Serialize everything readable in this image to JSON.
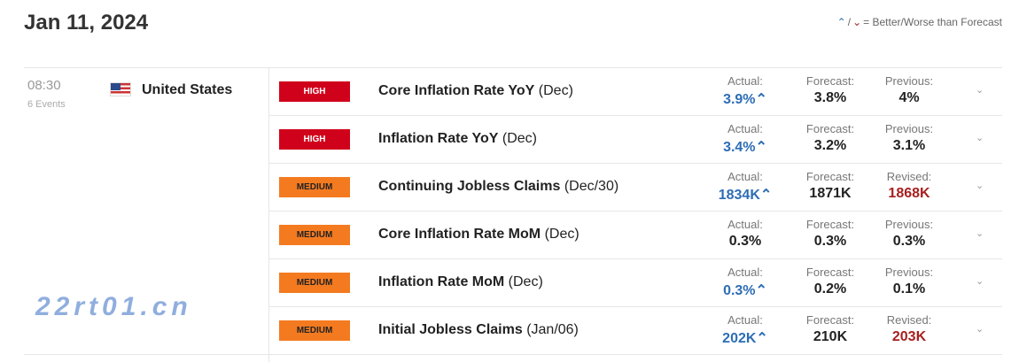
{
  "date": "Jan 11, 2024",
  "legend": {
    "text": "= Better/Worse than Forecast",
    "better_icon": "better-arrow-icon",
    "worse_icon": "worse-arrow-icon",
    "separator": "/"
  },
  "group": {
    "time": "08:30",
    "events": "6 Events",
    "country": "United States",
    "flag_icon": "us-flag-icon"
  },
  "colors": {
    "better": "#2d6db5",
    "worse": "#a82020",
    "high": "#d0021b",
    "medium": "#f47a20"
  },
  "rows": [
    {
      "impact": "HIGH",
      "name": "Core Inflation Rate YoY",
      "period": "(Dec)",
      "actual_label": "Actual:",
      "actual": "3.9%",
      "actual_status": "better",
      "forecast_label": "Forecast:",
      "forecast": "3.8%",
      "prev_label": "Previous:",
      "previous": "4%",
      "prev_status": ""
    },
    {
      "impact": "HIGH",
      "name": "Inflation Rate YoY",
      "period": "(Dec)",
      "actual_label": "Actual:",
      "actual": "3.4%",
      "actual_status": "better",
      "forecast_label": "Forecast:",
      "forecast": "3.2%",
      "prev_label": "Previous:",
      "previous": "3.1%",
      "prev_status": ""
    },
    {
      "impact": "MEDIUM",
      "name": "Continuing Jobless Claims",
      "period": "(Dec/30)",
      "actual_label": "Actual:",
      "actual": "1834K",
      "actual_status": "better",
      "forecast_label": "Forecast:",
      "forecast": "1871K",
      "prev_label": "Revised:",
      "previous": "1868K",
      "prev_status": "worse"
    },
    {
      "impact": "MEDIUM",
      "name": "Core Inflation Rate MoM",
      "period": "(Dec)",
      "actual_label": "Actual:",
      "actual": "0.3%",
      "actual_status": "",
      "forecast_label": "Forecast:",
      "forecast": "0.3%",
      "prev_label": "Previous:",
      "previous": "0.3%",
      "prev_status": ""
    },
    {
      "impact": "MEDIUM",
      "name": "Inflation Rate MoM",
      "period": "(Dec)",
      "actual_label": "Actual:",
      "actual": "0.3%",
      "actual_status": "better",
      "forecast_label": "Forecast:",
      "forecast": "0.2%",
      "prev_label": "Previous:",
      "previous": "0.1%",
      "prev_status": ""
    },
    {
      "impact": "MEDIUM",
      "name": "Initial Jobless Claims",
      "period": "(Jan/06)",
      "actual_label": "Actual:",
      "actual": "202K",
      "actual_status": "better",
      "forecast_label": "Forecast:",
      "forecast": "210K",
      "prev_label": "Revised:",
      "previous": "203K",
      "prev_status": "worse"
    }
  ],
  "watermark": "22rt01.cn"
}
